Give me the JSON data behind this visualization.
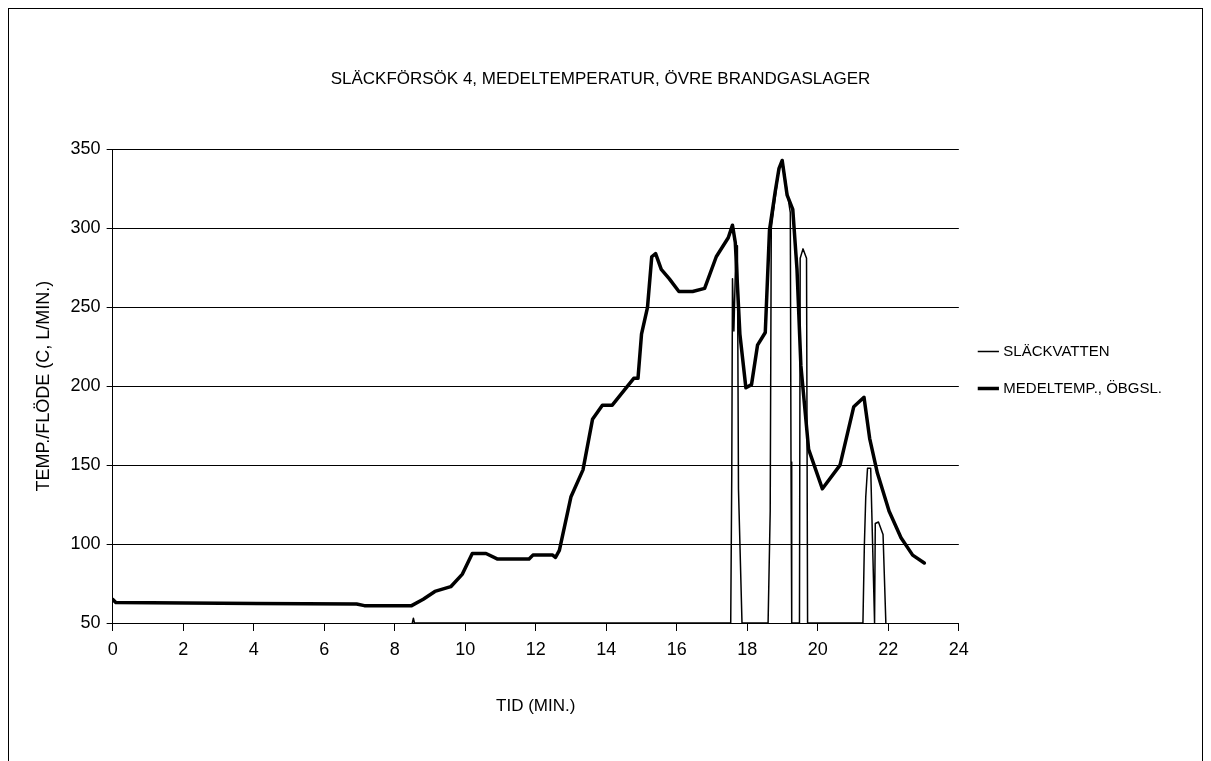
{
  "chart_data": {
    "type": "line",
    "title": "SLÄCKFÖRSÖK 4, MEDELTEMPERATUR, ÖVRE BRANDGASLAGER",
    "xlabel": "TID (MIN.)",
    "ylabel": "TEMP./FLÖDE (C, L/MIN.)",
    "xlim": [
      0,
      24
    ],
    "xticks": [
      0,
      2,
      4,
      6,
      8,
      10,
      12,
      14,
      16,
      18,
      20,
      22,
      24
    ],
    "ylim": [
      50,
      350
    ],
    "yticks": [
      50,
      100,
      150,
      200,
      250,
      300,
      350
    ],
    "grid": "y",
    "legend": "right",
    "marker": "none",
    "line_style": "solid",
    "series": [
      {
        "name": "SLÄCKVATTEN",
        "color": "#000000",
        "x": [
          8.5,
          8.53,
          8.56,
          17.53,
          17.56,
          17.58,
          17.62,
          17.68,
          17.72,
          17.75,
          17.85,
          18.59,
          18.65,
          18.68,
          18.9,
          19.0,
          19.15,
          19.22,
          19.24,
          19.26,
          19.48,
          19.5,
          19.58,
          19.68,
          19.71,
          21.28,
          21.32,
          21.36,
          21.41,
          21.5,
          21.61,
          21.63,
          21.72,
          21.85,
          21.93
        ],
        "values": [
          50,
          53,
          50,
          50,
          145,
          268,
          235,
          289,
          289,
          135,
          50,
          50,
          121,
          300,
          338,
          343,
          320,
          310,
          152,
          50,
          50,
          281,
          287,
          281,
          50,
          50,
          99,
          130,
          148,
          148,
          50,
          113,
          114,
          106,
          50
        ]
      },
      {
        "name": "MEDELTEMP., ÖBGSL.",
        "color": "#000000",
        "x": [
          0,
          0.09,
          6.92,
          7.14,
          8.48,
          8.81,
          9.14,
          9.59,
          9.92,
          10.2,
          10.59,
          10.92,
          11.81,
          11.92,
          12.48,
          12.56,
          12.67,
          13.0,
          13.34,
          13.61,
          13.89,
          14.17,
          14.78,
          14.9,
          15.0,
          15.17,
          15.29,
          15.4,
          15.56,
          15.79,
          16.06,
          16.45,
          16.79,
          17.12,
          17.46,
          17.58,
          17.66,
          17.79,
          17.96,
          18.12,
          18.29,
          18.51,
          18.63,
          18.79,
          18.9,
          18.99,
          19.13,
          19.29,
          19.41,
          19.52,
          19.74,
          20.13,
          20.63,
          21.02,
          21.31,
          21.47,
          21.69,
          22.02,
          22.36,
          22.69,
          23.02
        ],
        "values": [
          65,
          63,
          62,
          61,
          61,
          65,
          70,
          73,
          81,
          94,
          94,
          90.5,
          90.5,
          93,
          93,
          91.5,
          96,
          130,
          147,
          179,
          188,
          188,
          205,
          205,
          233,
          250,
          282,
          284,
          274,
          268,
          260,
          260,
          262,
          282,
          294,
          302,
          291,
          233,
          199,
          201,
          226,
          234,
          299,
          323,
          338,
          343,
          321,
          312,
          274,
          213,
          160,
          135,
          150,
          187,
          193,
          167,
          145,
          121,
          104,
          93,
          88
        ]
      }
    ]
  }
}
